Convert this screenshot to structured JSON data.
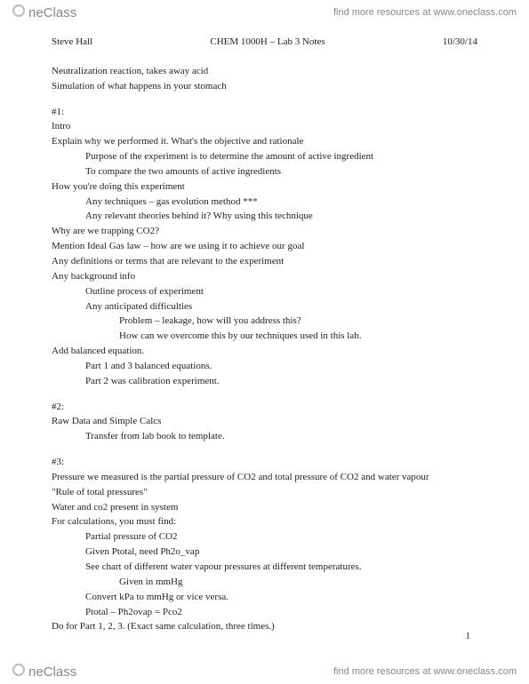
{
  "brand": "neClass",
  "toplink": "find more resources at www.oneclass.com",
  "bottomlink": "find more resources at www.oneclass.com",
  "header": {
    "author": "Steve Hall",
    "title": "CHEM 1000H – Lab 3 Notes",
    "date": "10/30/14"
  },
  "lines": [
    {
      "t": "Neutralization reaction, takes away acid",
      "i": 0
    },
    {
      "t": "Simulation of what happens in your stomach",
      "i": 0
    },
    {
      "t": "",
      "i": 0,
      "gap": true
    },
    {
      "t": "#1:",
      "i": 0
    },
    {
      "t": "Intro",
      "i": 0
    },
    {
      "t": "Explain why we performed it. What's the objective and rationale",
      "i": 0
    },
    {
      "t": "Purpose of the experiment is to determine the amount of active ingredient",
      "i": 1
    },
    {
      "t": "To compare the two amounts of active ingredients",
      "i": 1
    },
    {
      "t": "How you're doing this experiment",
      "i": 0
    },
    {
      "t": "Any techniques – gas evolution method ***",
      "i": 1
    },
    {
      "t": "Any relevant theories behind it? Why using this technique",
      "i": 1
    },
    {
      "t": "Why are we trapping CO2?",
      "i": 0
    },
    {
      "t": "Mention Ideal Gas law – how are we using it to achieve our goal",
      "i": 0
    },
    {
      "t": "Any definitions or terms that are relevant to the experiment",
      "i": 0
    },
    {
      "t": "Any background info",
      "i": 0
    },
    {
      "t": "Outline process of experiment",
      "i": 1
    },
    {
      "t": "Any anticipated difficulties",
      "i": 1
    },
    {
      "t": "Problem – leakage, how will you address this?",
      "i": 2
    },
    {
      "t": "How can we overcome this by our techniques used in this lab.",
      "i": 2
    },
    {
      "t": "Add balanced equation.",
      "i": 0
    },
    {
      "t": "Part 1 and 3 balanced equations.",
      "i": 1
    },
    {
      "t": "Part 2 was calibration experiment.",
      "i": 1
    },
    {
      "t": "",
      "i": 0,
      "gap": true
    },
    {
      "t": "#2:",
      "i": 0
    },
    {
      "t": "Raw Data and Simple Calcs",
      "i": 0
    },
    {
      "t": "Transfer from lab book to template.",
      "i": 1
    },
    {
      "t": "",
      "i": 0,
      "gap": true
    },
    {
      "t": "#3:",
      "i": 0
    },
    {
      "t": "Pressure we measured is the partial pressure of CO2 and total pressure of CO2 and water vapour",
      "i": 0
    },
    {
      "t": "\"Rule of total pressures\"",
      "i": 0
    },
    {
      "t": "Water and co2 present in system",
      "i": 0
    },
    {
      "t": "For calculations, you must find:",
      "i": 0
    },
    {
      "t": "Partial pressure of CO2",
      "i": 1
    },
    {
      "t": "Given Ptotal, need Ph2o_vap",
      "i": 1
    },
    {
      "t": "See chart of different water vapour pressures at different temperatures.",
      "i": 1
    },
    {
      "t": "Given in mmHg",
      "i": 2
    },
    {
      "t": "Convert kPa to mmHg or vice versa.",
      "i": 1
    },
    {
      "t": "Ptotal – Ph2ovap = Pco2",
      "i": 1
    },
    {
      "t": "Do for Part 1, 2, 3. (Exact same calculation, three times.)",
      "i": 0
    }
  ],
  "pagenum": "1"
}
